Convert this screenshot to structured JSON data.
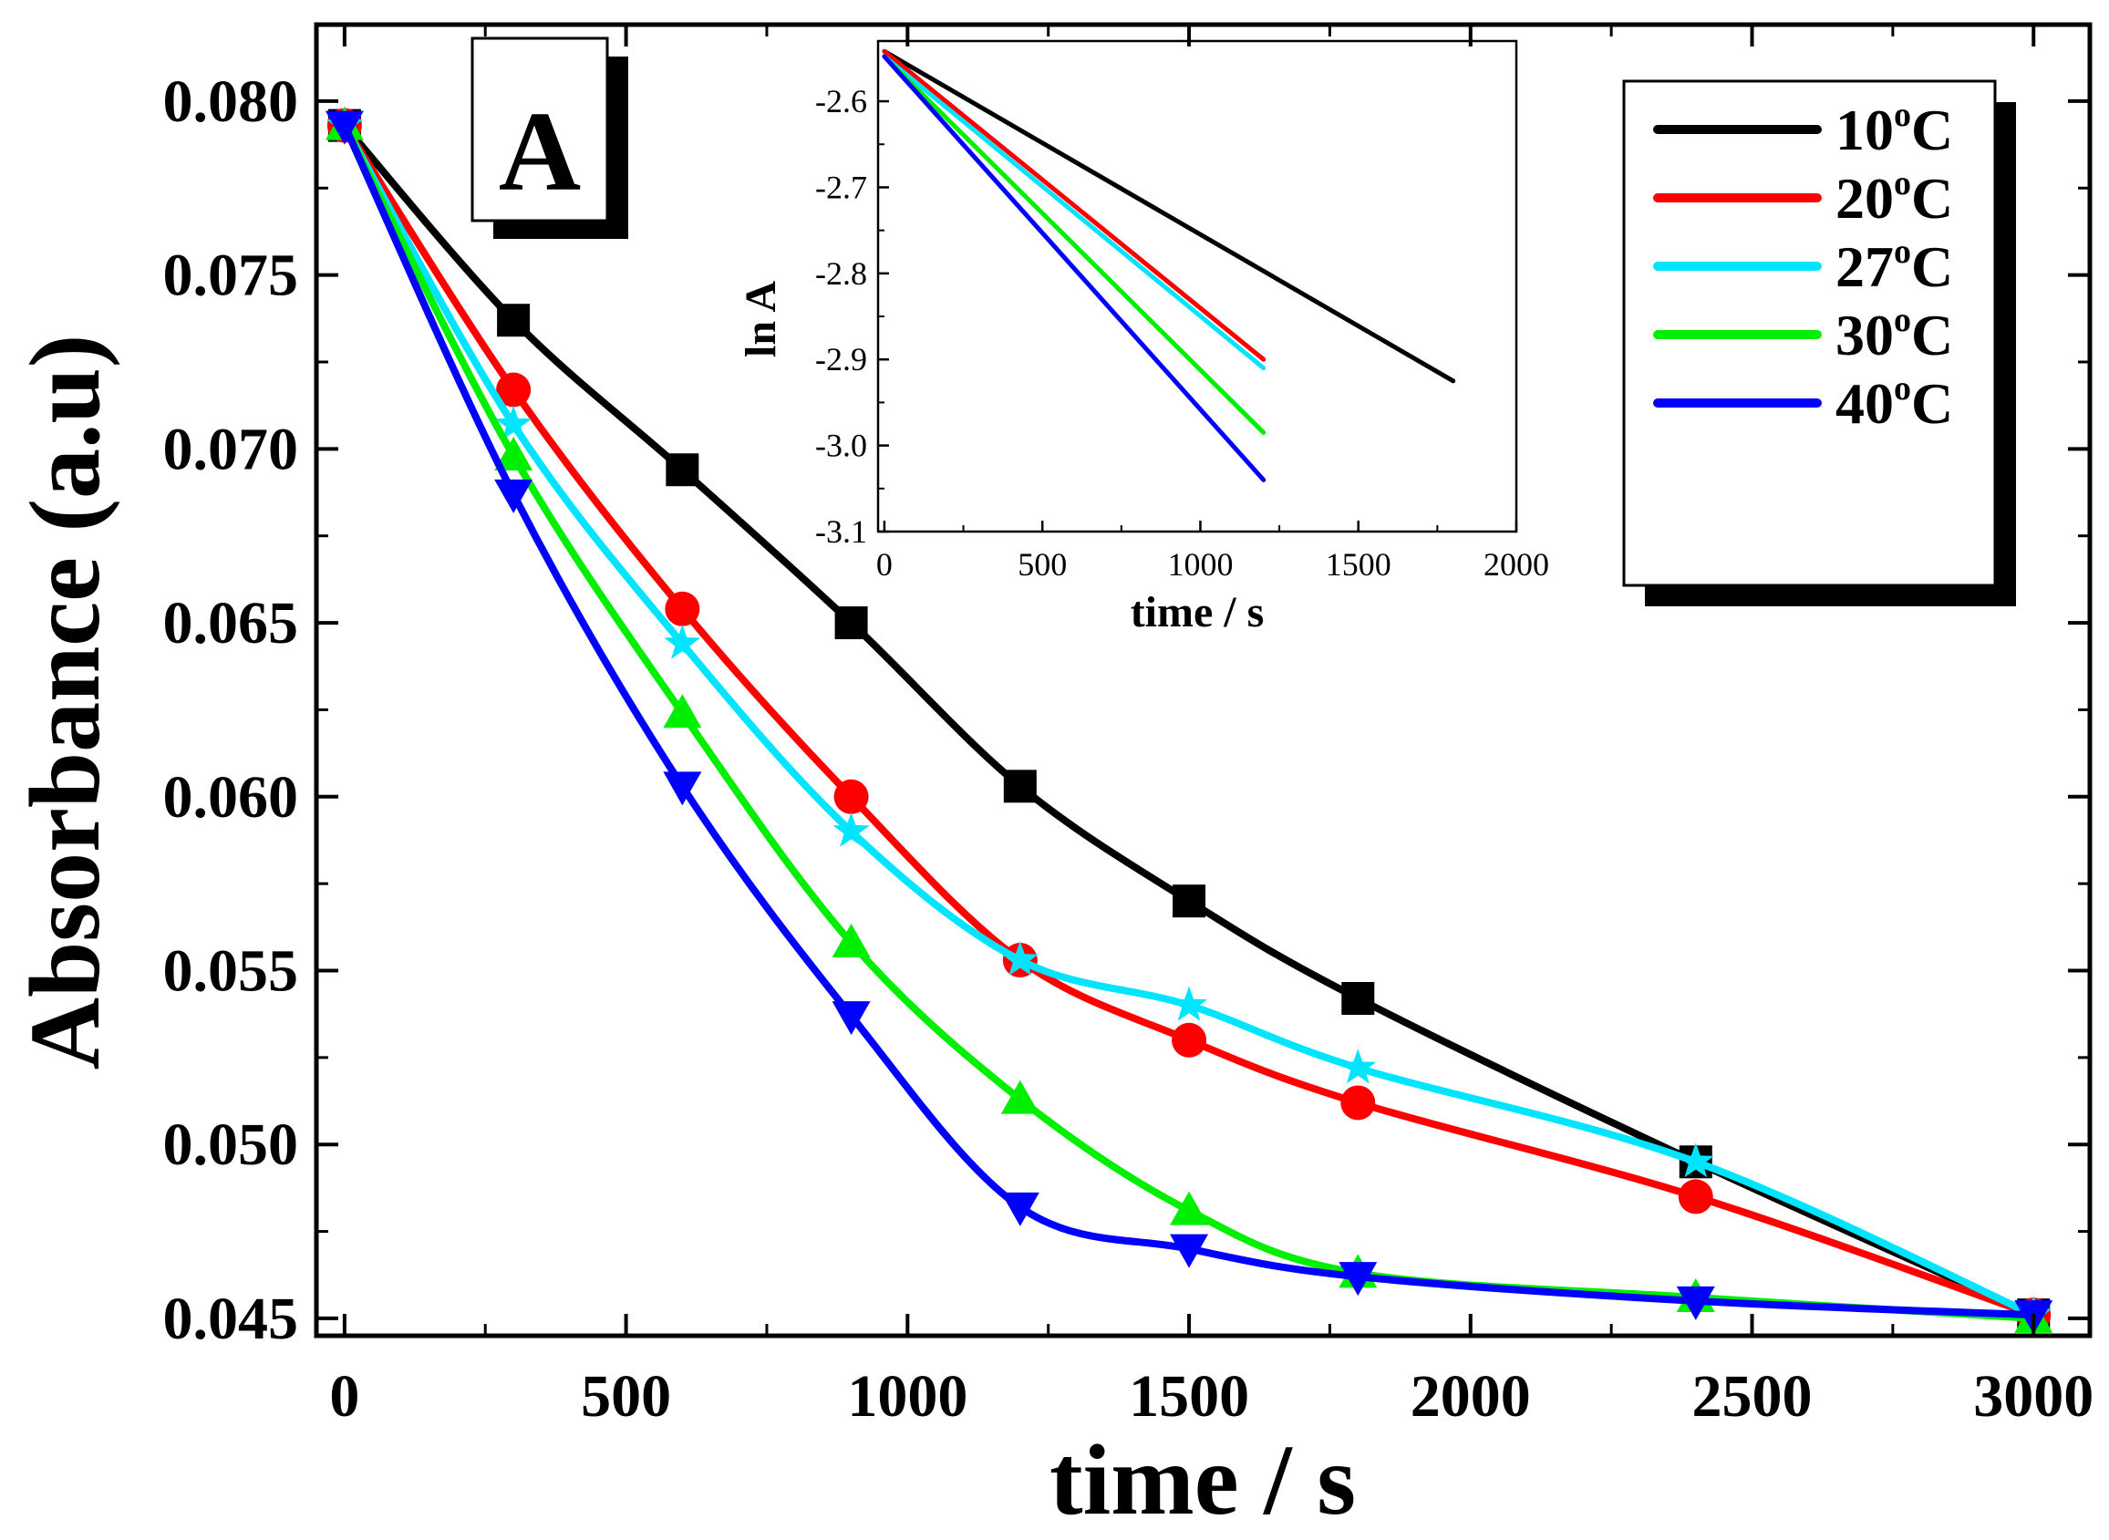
{
  "chart_data": [
    {
      "type": "line",
      "panel_label": "A",
      "xlabel": "time / s",
      "ylabel": "Absorbance (a.u)",
      "xlim": [
        -50,
        3100
      ],
      "ylim": [
        0.0445,
        0.0822
      ],
      "x_ticks": [
        0,
        500,
        1000,
        1500,
        2000,
        2500,
        3000
      ],
      "x_tick_labels": [
        "0",
        "500",
        "1000",
        "1500",
        "2000",
        "2500",
        "3000"
      ],
      "y_ticks": [
        0.045,
        0.05,
        0.055,
        0.06,
        0.065,
        0.07,
        0.075,
        0.08
      ],
      "y_tick_labels": [
        "0.045",
        "0.050",
        "0.055",
        "0.060",
        "0.065",
        "0.070",
        "0.075",
        "0.080"
      ],
      "grid": false,
      "legend_position": "top-right",
      "series": [
        {
          "name": "10°C",
          "legend_main": "10",
          "legend_sup": "o",
          "legend_tail": "C",
          "color": "#000000",
          "marker": "square",
          "x": [
            0,
            300,
            600,
            900,
            1200,
            1500,
            1800,
            2400,
            3000
          ],
          "y": [
            0.0793,
            0.0737,
            0.0694,
            0.065,
            0.0603,
            0.057,
            0.0542,
            0.0495,
            0.0451
          ]
        },
        {
          "name": "20°C",
          "legend_main": "20",
          "legend_sup": "o",
          "legend_tail": "C",
          "color": "#ff0000",
          "marker": "circle",
          "x": [
            0,
            300,
            600,
            900,
            1200,
            1500,
            1800,
            2400,
            3000
          ],
          "y": [
            0.0793,
            0.0717,
            0.0654,
            0.06,
            0.0553,
            0.053,
            0.0512,
            0.0485,
            0.0451
          ]
        },
        {
          "name": "27°C",
          "legend_main": "27",
          "legend_sup": "o",
          "legend_tail": "C",
          "color": "#00e5ff",
          "marker": "star",
          "x": [
            0,
            300,
            600,
            900,
            1200,
            1500,
            1800,
            2400,
            3000
          ],
          "y": [
            0.0793,
            0.0707,
            0.0644,
            0.059,
            0.0553,
            0.054,
            0.0522,
            0.0495,
            0.0451
          ]
        },
        {
          "name": "30°C",
          "legend_main": "30",
          "legend_sup": "o",
          "legend_tail": "C",
          "color": "#00ee00",
          "marker": "triangle-up",
          "x": [
            0,
            300,
            600,
            900,
            1200,
            1500,
            1800,
            2400,
            3000
          ],
          "y": [
            0.0793,
            0.0698,
            0.0624,
            0.0558,
            0.0513,
            0.0481,
            0.0463,
            0.0456,
            0.045
          ]
        },
        {
          "name": "40°C",
          "legend_main": "40",
          "legend_sup": "o",
          "legend_tail": "C",
          "color": "#0000ff",
          "marker": "triangle-down",
          "x": [
            0,
            300,
            600,
            900,
            1200,
            1500,
            1800,
            2400,
            3000
          ],
          "y": [
            0.0793,
            0.0687,
            0.0603,
            0.0537,
            0.0482,
            0.047,
            0.0462,
            0.0455,
            0.0451
          ]
        }
      ]
    },
    {
      "type": "line",
      "role": "inset",
      "xlabel": "time / s",
      "ylabel": "ln A",
      "xlim": [
        -20,
        2000
      ],
      "ylim": [
        -3.1,
        -2.53
      ],
      "x_ticks": [
        0,
        500,
        1000,
        1500,
        2000
      ],
      "x_tick_labels": [
        "0",
        "500",
        "1000",
        "1500",
        "2000"
      ],
      "y_ticks": [
        -2.6,
        -2.7,
        -2.8,
        -2.9,
        -3.0,
        -3.1
      ],
      "y_tick_labels": [
        "-2.6",
        "-2.7",
        "-2.8",
        "-2.9",
        "-3.0",
        "-3.1"
      ],
      "grid": false,
      "series": [
        {
          "name": "10°C",
          "color": "#000000",
          "x": [
            0,
            1800
          ],
          "y": [
            -2.542,
            -2.925
          ]
        },
        {
          "name": "20°C",
          "color": "#ff0000",
          "x": [
            0,
            1200
          ],
          "y": [
            -2.542,
            -2.9
          ]
        },
        {
          "name": "27°C",
          "color": "#00e5ff",
          "x": [
            0,
            1200
          ],
          "y": [
            -2.548,
            -2.91
          ]
        },
        {
          "name": "30°C",
          "color": "#00ee00",
          "x": [
            0,
            1200
          ],
          "y": [
            -2.548,
            -2.985
          ]
        },
        {
          "name": "40°C",
          "color": "#0000ff",
          "x": [
            0,
            1200
          ],
          "y": [
            -2.548,
            -3.04
          ]
        }
      ]
    }
  ]
}
